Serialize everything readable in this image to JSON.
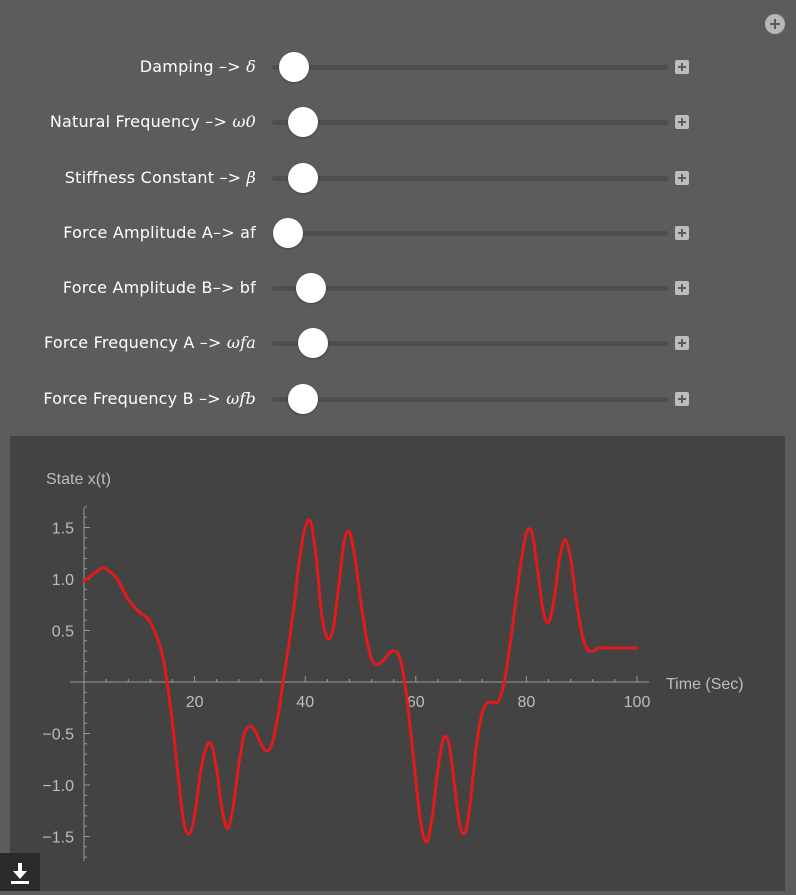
{
  "sliders": [
    {
      "label": "Damping –> ",
      "var": "δ",
      "value": 0.03
    },
    {
      "label": "Natural Frequency –> ",
      "var": "ω0",
      "value": 0.053
    },
    {
      "label": "Stiffness Constant –> ",
      "var": "β",
      "value": 0.053
    },
    {
      "label": "Force Amplitude A–> af",
      "var": "",
      "value": 0.015
    },
    {
      "label": "Force Amplitude B–> bf",
      "var": "",
      "value": 0.073
    },
    {
      "label": "Force Frequency A –> ",
      "var": "ωfa",
      "value": 0.078
    },
    {
      "label": "Force Frequency B –> ",
      "var": "ωfb",
      "value": 0.053
    }
  ],
  "icons": {
    "top": "plus-circle-icon",
    "row": "plus-square-icon",
    "download": "download-icon"
  },
  "chart_data": {
    "type": "line",
    "xlabel": "Time (Sec)",
    "ylabel": "State x(t)",
    "xlim": [
      0,
      100
    ],
    "ylim": [
      -1.75,
      1.75
    ],
    "xticks": [
      20,
      40,
      60,
      80,
      100
    ],
    "yticks": [
      -1.5,
      -1.0,
      -0.5,
      0.5,
      1.0,
      1.5
    ],
    "ytick_labels": [
      "−1.5",
      "−1.0",
      "−0.5",
      "0.5",
      "1.0",
      "1.5"
    ],
    "line_color": "#e31a1c",
    "series": [
      {
        "x": [
          0,
          1,
          3,
          4,
          6,
          8,
          10,
          12,
          14,
          15,
          16,
          17,
          18,
          19,
          20,
          21,
          22,
          23,
          24,
          25,
          26,
          27,
          28,
          29,
          30,
          31,
          32,
          33,
          34,
          35,
          36,
          37,
          38,
          39,
          40,
          41,
          42,
          43,
          44,
          45,
          46,
          47,
          48,
          49,
          50,
          51,
          52,
          53,
          54,
          55,
          56,
          57,
          58,
          59,
          60,
          61,
          62,
          63,
          64,
          65,
          66,
          67,
          68,
          69,
          70,
          71,
          72,
          73,
          74,
          75,
          76,
          77,
          78,
          79,
          80,
          81,
          82,
          83,
          84,
          85,
          86,
          87,
          88,
          89,
          90,
          91,
          92,
          93,
          94,
          95,
          96,
          97,
          98,
          99,
          100
        ],
        "y": [
          0.98,
          1.02,
          1.1,
          1.1,
          1.0,
          0.8,
          0.68,
          0.58,
          0.3,
          0.0,
          -0.4,
          -0.9,
          -1.35,
          -1.48,
          -1.3,
          -0.9,
          -0.65,
          -0.6,
          -0.85,
          -1.25,
          -1.42,
          -1.2,
          -0.8,
          -0.5,
          -0.43,
          -0.48,
          -0.6,
          -0.67,
          -0.6,
          -0.35,
          0.0,
          0.35,
          0.75,
          1.2,
          1.5,
          1.55,
          1.2,
          0.65,
          0.43,
          0.5,
          0.9,
          1.35,
          1.46,
          1.2,
          0.8,
          0.45,
          0.22,
          0.17,
          0.2,
          0.27,
          0.3,
          0.25,
          0.0,
          -0.45,
          -0.95,
          -1.4,
          -1.55,
          -1.3,
          -0.85,
          -0.55,
          -0.6,
          -1.0,
          -1.4,
          -1.45,
          -1.1,
          -0.6,
          -0.3,
          -0.2,
          -0.2,
          -0.18,
          0.0,
          0.35,
          0.75,
          1.15,
          1.45,
          1.45,
          1.1,
          0.7,
          0.58,
          0.8,
          1.2,
          1.38,
          1.2,
          0.8,
          0.48,
          0.32,
          0.3,
          0.33,
          0.33,
          0.33,
          0.33,
          0.33,
          0.33,
          0.33,
          0.33
        ]
      }
    ]
  }
}
